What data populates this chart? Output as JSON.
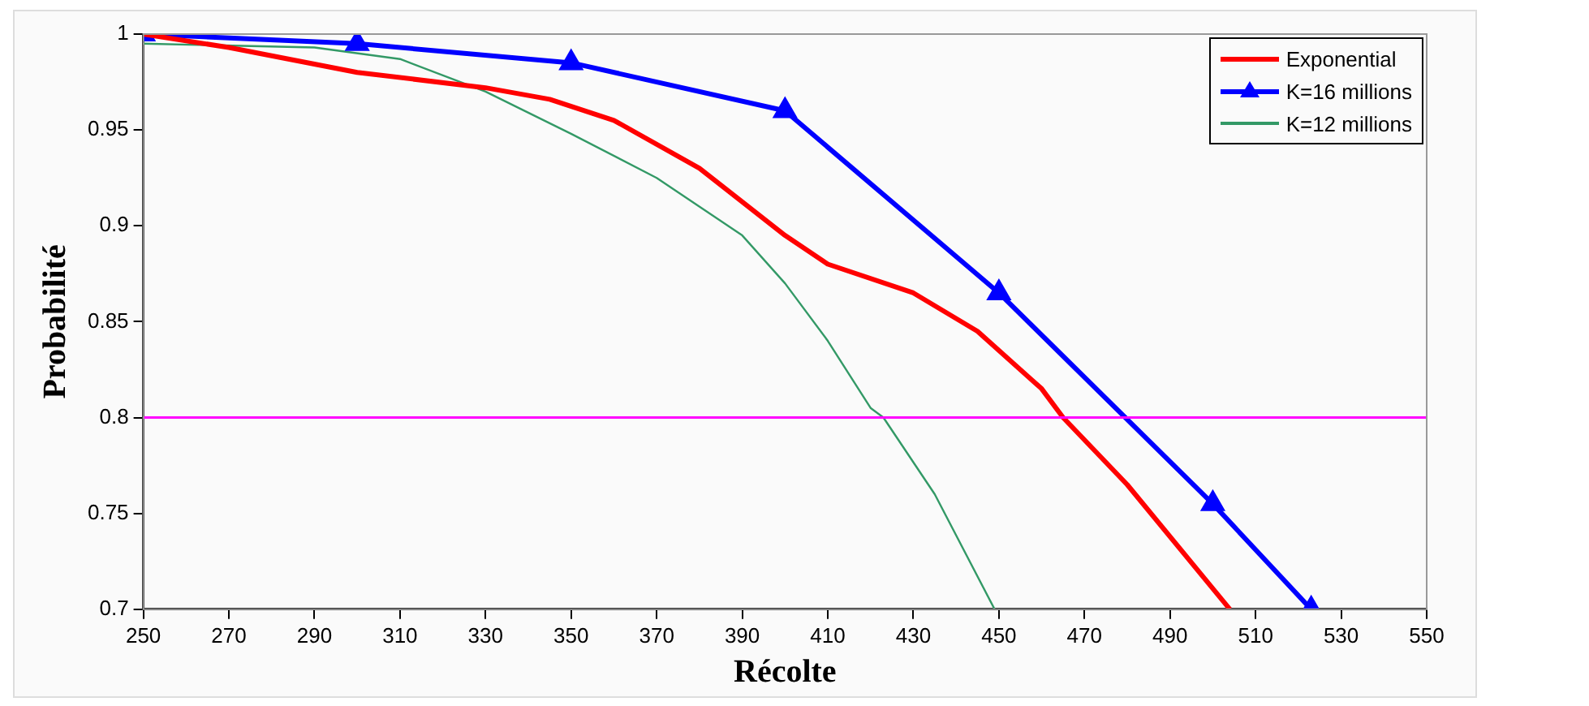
{
  "chart_data": {
    "type": "line",
    "xlabel": "Récolte",
    "ylabel": "Probabilité",
    "xlim": [
      250,
      550
    ],
    "xticks": [
      250,
      270,
      290,
      310,
      330,
      350,
      370,
      390,
      410,
      430,
      450,
      470,
      490,
      510,
      530,
      550
    ],
    "ylim": [
      0.7,
      1
    ],
    "yticks": [
      0.7,
      0.75,
      0.8,
      0.85,
      0.9,
      0.95,
      1
    ],
    "grid": false,
    "legend": "top right",
    "line_style": "solid",
    "series": [
      {
        "name": "Exponential",
        "color": "#ff0000",
        "marker": "none",
        "x": [
          250,
          270,
          300,
          330,
          345,
          360,
          380,
          400,
          410,
          430,
          445,
          460,
          465,
          480,
          504
        ],
        "values": [
          1,
          0.993,
          0.98,
          0.972,
          0.966,
          0.955,
          0.93,
          0.895,
          0.88,
          0.865,
          0.845,
          0.815,
          0.8,
          0.765,
          0.7
        ]
      },
      {
        "name": "K=16 millions",
        "color": "#0000ff",
        "marker": "triangle",
        "x": [
          250,
          300,
          350,
          400,
          450,
          500,
          523
        ],
        "values": [
          1,
          0.995,
          0.985,
          0.96,
          0.865,
          0.755,
          0.7
        ]
      },
      {
        "name": "K=12 millions",
        "color": "#339966",
        "marker": "none",
        "x": [
          250,
          290,
          310,
          330,
          350,
          370,
          390,
          400,
          410,
          420,
          423,
          435,
          449
        ],
        "values": [
          0.995,
          0.993,
          0.987,
          0.97,
          0.948,
          0.925,
          0.895,
          0.87,
          0.84,
          0.805,
          0.8,
          0.76,
          0.7
        ]
      }
    ],
    "ref_lines": [
      {
        "axis": "y",
        "value": 0.8,
        "color": "#ff00ff"
      }
    ]
  }
}
